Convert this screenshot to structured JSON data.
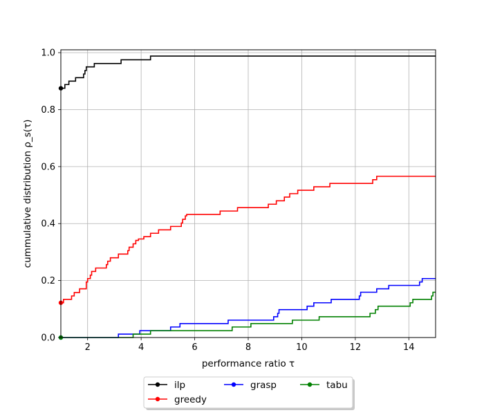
{
  "chart_data": {
    "type": "line",
    "title": "",
    "xlabel": "performance ratio τ",
    "ylabel": "cummulative distribution ρ_s(τ)",
    "xlim": [
      1,
      15
    ],
    "ylim": [
      0,
      1.01
    ],
    "xticks": [
      2,
      4,
      6,
      8,
      10,
      12,
      14
    ],
    "xtick_labels": [
      "2",
      "4",
      "6",
      "8",
      "10",
      "12",
      "14"
    ],
    "yticks": [
      0.0,
      0.2,
      0.4,
      0.6,
      0.8,
      1.0
    ],
    "ytick_labels": [
      "0.0",
      "0.2",
      "0.4",
      "0.6",
      "0.8",
      "1.0"
    ],
    "grid": true,
    "legend_placement": "bottom-center",
    "series": [
      {
        "name": "ilp",
        "color": "#000000",
        "marker_at_start": true,
        "step_points": [
          [
            1.0,
            0.875
          ],
          [
            1.15,
            0.888
          ],
          [
            1.3,
            0.9
          ],
          [
            1.55,
            0.912
          ],
          [
            1.85,
            0.925
          ],
          [
            1.9,
            0.937
          ],
          [
            1.95,
            0.95
          ],
          [
            2.25,
            0.962
          ],
          [
            3.25,
            0.975
          ],
          [
            4.35,
            0.988
          ],
          [
            15.0,
            0.988
          ]
        ]
      },
      {
        "name": "greedy",
        "color": "#ff0000",
        "marker_at_start": true,
        "step_points": [
          [
            1.0,
            0.122
          ],
          [
            1.1,
            0.134
          ],
          [
            1.4,
            0.146
          ],
          [
            1.5,
            0.158
          ],
          [
            1.7,
            0.171
          ],
          [
            1.95,
            0.195
          ],
          [
            2.0,
            0.207
          ],
          [
            2.1,
            0.219
          ],
          [
            2.15,
            0.232
          ],
          [
            2.3,
            0.244
          ],
          [
            2.7,
            0.256
          ],
          [
            2.75,
            0.268
          ],
          [
            2.85,
            0.28
          ],
          [
            3.15,
            0.293
          ],
          [
            3.5,
            0.305
          ],
          [
            3.55,
            0.317
          ],
          [
            3.7,
            0.329
          ],
          [
            3.8,
            0.341
          ],
          [
            3.9,
            0.346
          ],
          [
            4.1,
            0.354
          ],
          [
            4.35,
            0.366
          ],
          [
            4.65,
            0.378
          ],
          [
            5.1,
            0.39
          ],
          [
            5.5,
            0.402
          ],
          [
            5.55,
            0.415
          ],
          [
            5.65,
            0.427
          ],
          [
            5.7,
            0.432
          ],
          [
            6.95,
            0.444
          ],
          [
            7.6,
            0.456
          ],
          [
            8.75,
            0.468
          ],
          [
            9.05,
            0.48
          ],
          [
            9.35,
            0.493
          ],
          [
            9.55,
            0.505
          ],
          [
            9.85,
            0.517
          ],
          [
            10.45,
            0.529
          ],
          [
            11.05,
            0.541
          ],
          [
            12.65,
            0.554
          ],
          [
            12.8,
            0.566
          ],
          [
            15.0,
            0.566
          ]
        ]
      },
      {
        "name": "grasp",
        "color": "#0000ff",
        "marker_at_start": true,
        "step_points": [
          [
            1.0,
            0.0
          ],
          [
            3.15,
            0.012
          ],
          [
            3.95,
            0.024
          ],
          [
            5.1,
            0.037
          ],
          [
            5.45,
            0.049
          ],
          [
            7.25,
            0.061
          ],
          [
            8.95,
            0.073
          ],
          [
            9.1,
            0.085
          ],
          [
            9.15,
            0.098
          ],
          [
            10.2,
            0.11
          ],
          [
            10.45,
            0.122
          ],
          [
            11.1,
            0.134
          ],
          [
            12.15,
            0.146
          ],
          [
            12.2,
            0.159
          ],
          [
            12.8,
            0.171
          ],
          [
            13.25,
            0.183
          ],
          [
            14.4,
            0.195
          ],
          [
            14.5,
            0.207
          ],
          [
            15.0,
            0.207
          ]
        ]
      },
      {
        "name": "tabu",
        "color": "#008000",
        "marker_at_start": true,
        "step_points": [
          [
            1.0,
            0.0
          ],
          [
            3.7,
            0.012
          ],
          [
            4.35,
            0.024
          ],
          [
            7.4,
            0.037
          ],
          [
            8.1,
            0.049
          ],
          [
            9.65,
            0.061
          ],
          [
            10.65,
            0.073
          ],
          [
            12.55,
            0.085
          ],
          [
            12.75,
            0.098
          ],
          [
            12.85,
            0.11
          ],
          [
            14.05,
            0.122
          ],
          [
            14.15,
            0.134
          ],
          [
            14.85,
            0.146
          ],
          [
            14.9,
            0.159
          ],
          [
            15.0,
            0.159
          ]
        ]
      }
    ]
  }
}
